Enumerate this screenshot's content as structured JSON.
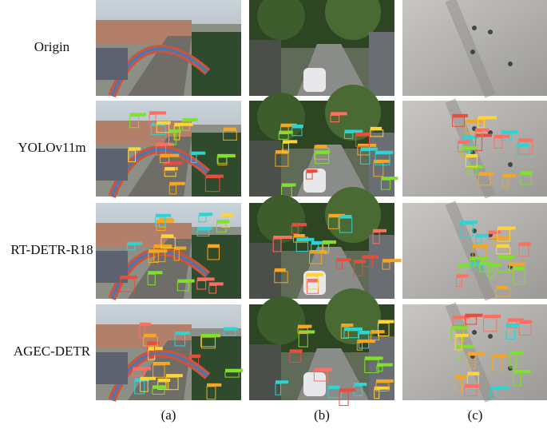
{
  "rows": [
    {
      "label": "Origin"
    },
    {
      "label": "YOLOv11m"
    },
    {
      "label": "RT-DETR-R18"
    },
    {
      "label": "AGEC-DETR"
    }
  ],
  "columns": [
    "(a)",
    "(b)",
    "(c)"
  ]
}
